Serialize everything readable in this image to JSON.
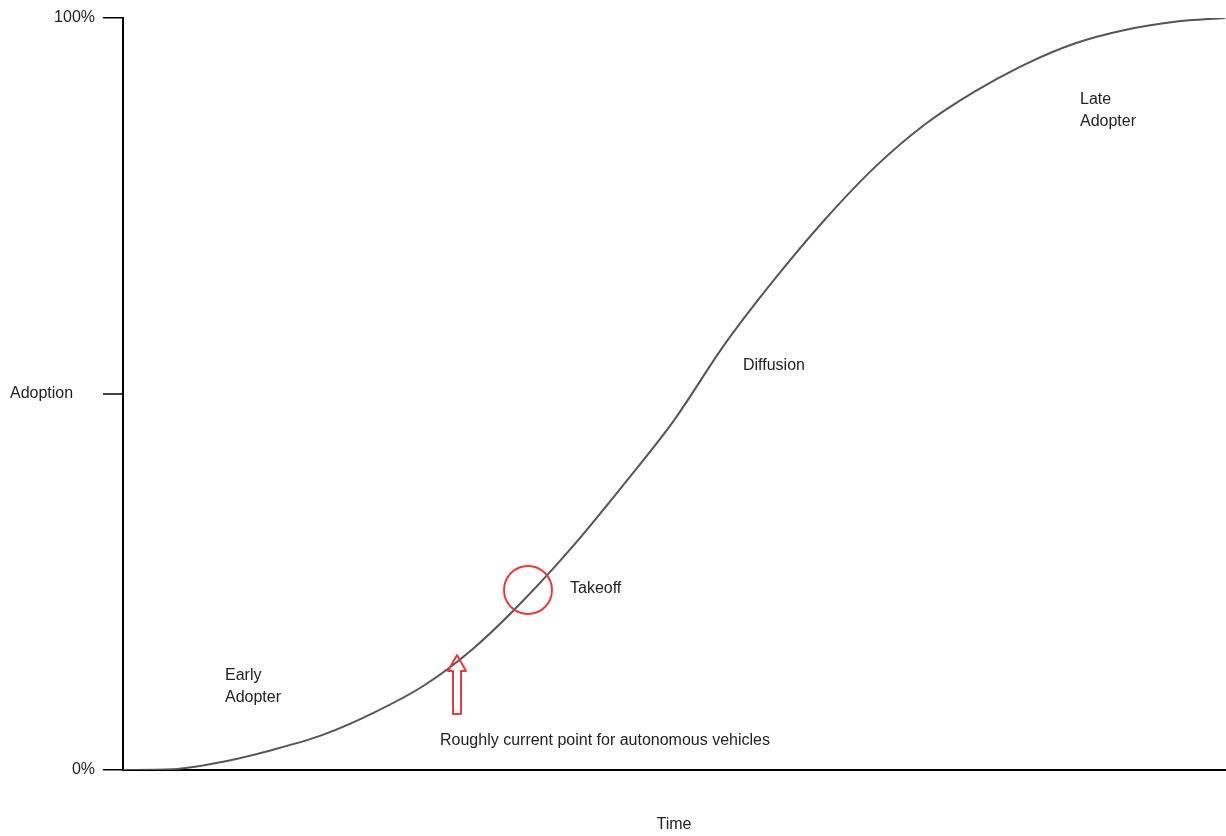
{
  "chart_data": {
    "type": "line",
    "xlabel": "Time",
    "ylabel": "Adoption",
    "categories": [
      null,
      null,
      null,
      null,
      null,
      null,
      null,
      null,
      null,
      null,
      null,
      null,
      null,
      null,
      null,
      null,
      null,
      null,
      null,
      null,
      null,
      null,
      null
    ],
    "series": [
      {
        "color": "#555555",
        "values": [
          0,
          0.1,
          1.1,
          2.7,
          4.7,
          7.6,
          11.2,
          16.2,
          22.6,
          29.9,
          38,
          46.5,
          56.5,
          65.2,
          73.1,
          80.1,
          85.8,
          90.2,
          93.8,
          96.6,
          98.4,
          99.5,
          100
        ]
      }
    ],
    "ylim": [
      0,
      100
    ],
    "yticks": [
      {
        "value": 0,
        "label": "0%"
      },
      {
        "value": 100,
        "label": "100%"
      }
    ],
    "grid": false,
    "legend": false,
    "marker": "none",
    "line_style": "solid",
    "tick_labels": "y",
    "annotations": [
      "Late Adopter",
      "Diffusion",
      "Takeoff",
      "Early Adopter",
      "Roughly current point for autonomous vehicles"
    ]
  }
}
